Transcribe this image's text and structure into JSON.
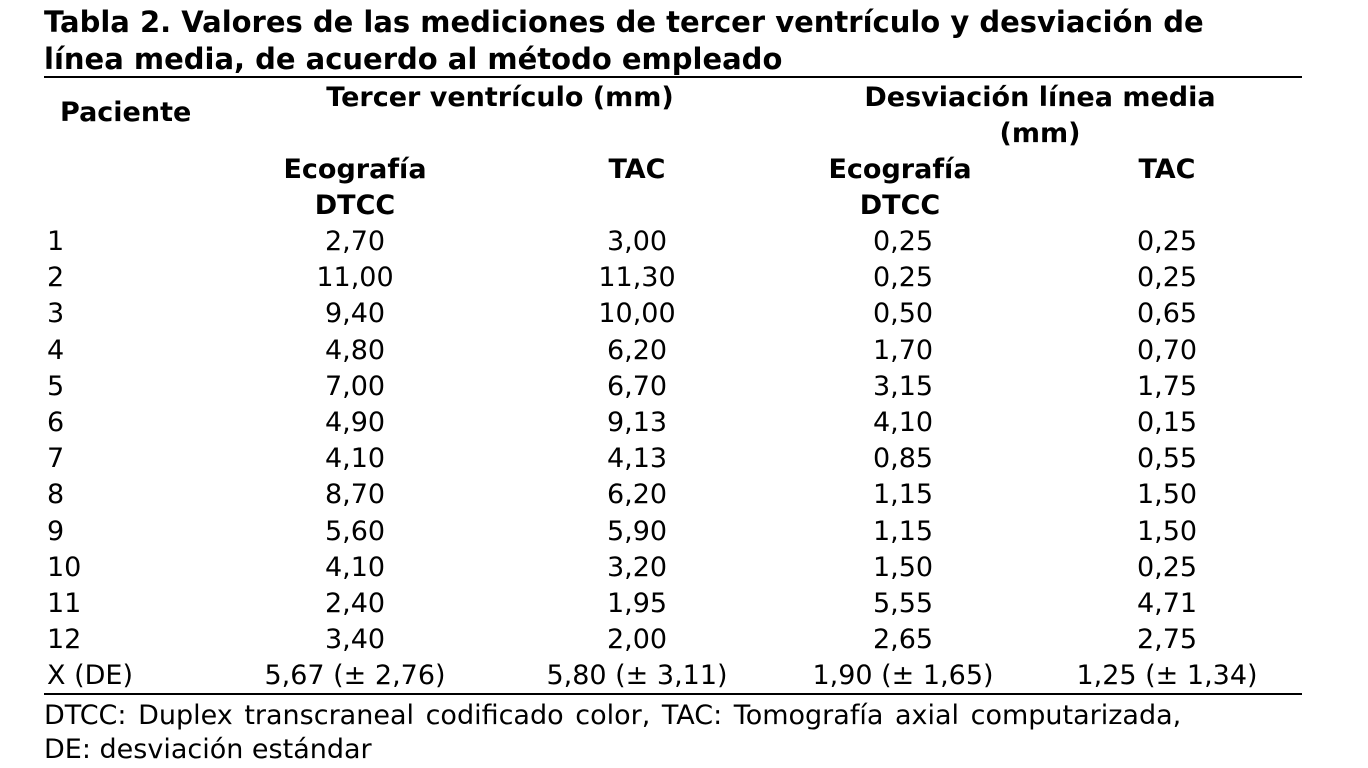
{
  "title_lines": [
    "Tabla 2. Valores de las mediciones de tercer ventrículo y desviación de",
    "línea media, de acuerdo al método empleado"
  ],
  "table": {
    "group_headers": [
      "Paciente",
      "Tercer ventrículo (mm)",
      "Desviación línea media (mm)"
    ],
    "sub_headers": [
      "Ecografía DTCC",
      "TAC",
      "Ecografía DTCC",
      "TAC"
    ],
    "rows": [
      [
        "1",
        "2,70",
        "3,00",
        "0,25",
        "0,25"
      ],
      [
        "2",
        "11,00",
        "11,30",
        "0,25",
        "0,25"
      ],
      [
        "3",
        "9,40",
        "10,00",
        "0,50",
        "0,65"
      ],
      [
        "4",
        "4,80",
        "6,20",
        "1,70",
        "0,70"
      ],
      [
        "5",
        "7,00",
        "6,70",
        "3,15",
        "1,75"
      ],
      [
        "6",
        "4,90",
        "9,13",
        "4,10",
        "0,15"
      ],
      [
        "7",
        "4,10",
        "4,13",
        "0,85",
        "0,55"
      ],
      [
        "8",
        "8,70",
        "6,20",
        "1,15",
        "1,50"
      ],
      [
        "9",
        "5,60",
        "5,90",
        "1,15",
        "1,50"
      ],
      [
        "10",
        "4,10",
        "3,20",
        "1,50",
        "0,25"
      ],
      [
        "11",
        "2,40",
        "1,95",
        "5,55",
        "4,71"
      ],
      [
        "12",
        "3,40",
        "2,00",
        "2,65",
        "2,75"
      ],
      [
        "X (DE)",
        "5,67 (± 2,76)",
        "5,80 (± 3,11)",
        "1,90 (± 1,65)",
        "1,25 (± 1,34)"
      ]
    ]
  },
  "footnote_lines": [
    "DTCC: Duplex transcraneal codificado color, TAC: Tomografía axial computarizada,",
    "DE: desviación estándar"
  ]
}
